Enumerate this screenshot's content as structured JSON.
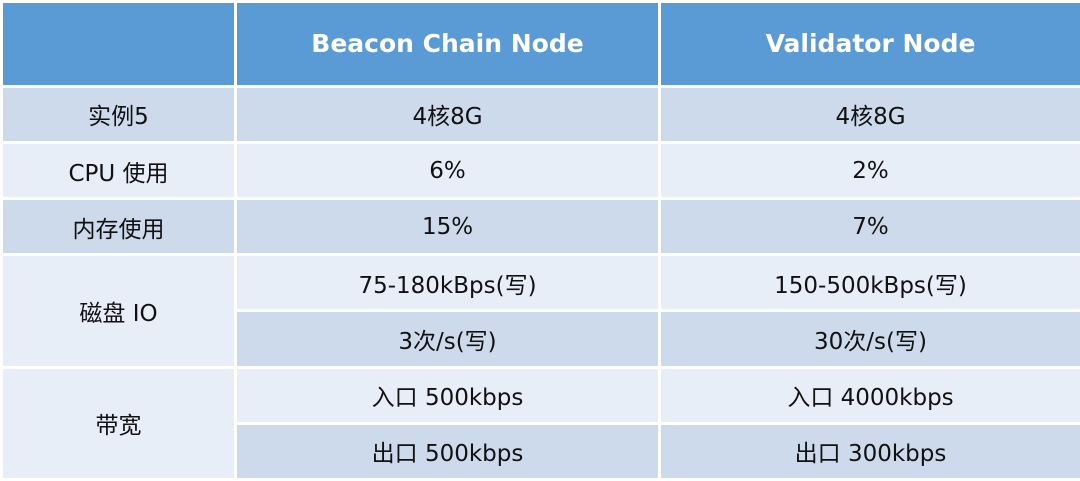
{
  "table": {
    "headers": [
      "",
      "Beacon Chain Node",
      "Validator Node"
    ],
    "rows": [
      {
        "label": "实例5",
        "beacon": "4核8G",
        "validator": "4核8G"
      },
      {
        "label": "CPU 使用",
        "beacon": "6%",
        "validator": "2%"
      },
      {
        "label": "内存使用",
        "beacon": "15%",
        "validator": "7%"
      },
      {
        "label": "磁盘 IO",
        "beacon": "75-180kBps(写)",
        "validator": "150-500kBps(写)",
        "beacon_2": "3次/s(写)",
        "validator_2": "30次/s(写)"
      },
      {
        "label": "带宽",
        "beacon": "入口 500kbps",
        "validator": "入口 4000kbps",
        "beacon_2": "出口 500kbps",
        "validator_2": "出口 300kbps"
      }
    ]
  },
  "colors": {
    "header_bg": "#5b9bd5",
    "row_dark": "#cddaeb",
    "row_light": "#e8eef7"
  }
}
